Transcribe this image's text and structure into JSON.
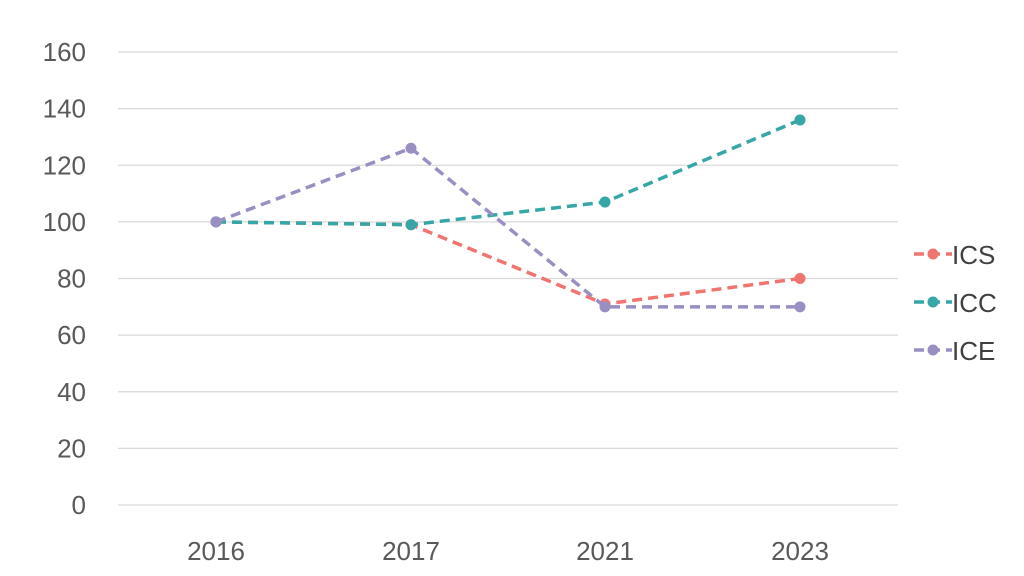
{
  "chart_data": {
    "type": "line",
    "categories": [
      "2016",
      "2017",
      "2021",
      "2023"
    ],
    "ylim": [
      0,
      160
    ],
    "yticks": [
      0,
      20,
      40,
      60,
      80,
      100,
      120,
      140,
      160
    ],
    "grid": true,
    "legend": "right",
    "line_style": "dashed",
    "series": [
      {
        "name": "ICS",
        "color": "#f07470",
        "values": [
          100,
          99,
          71,
          80
        ]
      },
      {
        "name": "ICC",
        "color": "#36a6a6",
        "values": [
          100,
          99,
          107,
          136
        ]
      },
      {
        "name": "ICE",
        "color": "#9a8fc2",
        "values": [
          100,
          126,
          70,
          70
        ]
      }
    ]
  }
}
